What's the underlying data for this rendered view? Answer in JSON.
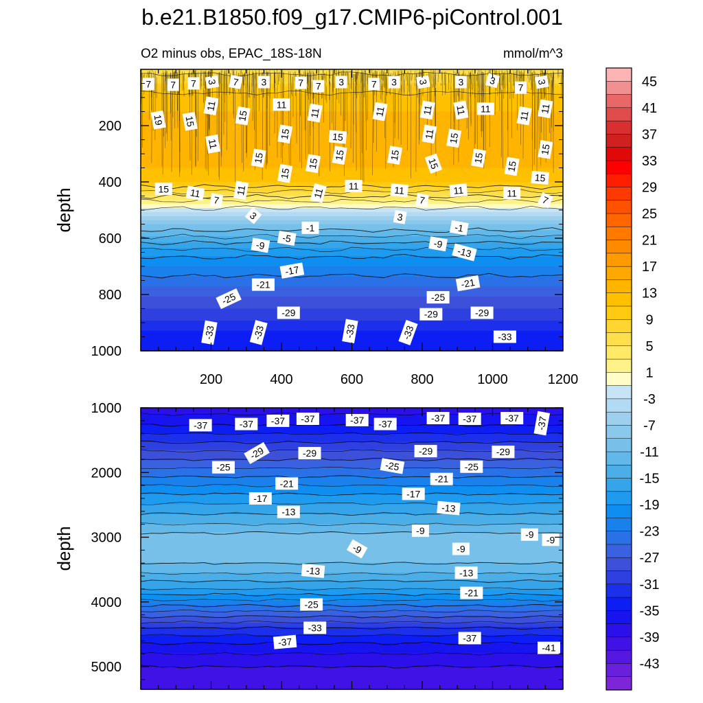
{
  "figure": {
    "title": "b.e21.B1850.f09_g17.CMIP6-piControl.001",
    "subtitle_left": "O2 minus obs, EPAC_18S-18N",
    "subtitle_right": "mmol/m^3"
  },
  "chart_data": [
    {
      "type": "heatmap",
      "panel": "upper",
      "ylabel": "depth",
      "xlim": [
        0,
        1200
      ],
      "ylim": [
        1000,
        0
      ],
      "x_ticks": [
        200,
        400,
        600,
        800,
        1000,
        1200
      ],
      "y_ticks": [
        200,
        400,
        600,
        800,
        1000
      ],
      "profile": {
        "depth": [
          0,
          100,
          200,
          300,
          400,
          460,
          500,
          560,
          650,
          750,
          850,
          950,
          1000
        ],
        "value": [
          5,
          11,
          13,
          14,
          10,
          3,
          -3,
          -11,
          -19,
          -25,
          -30,
          -35,
          -36
        ]
      },
      "contour_labels": [
        {
          "x": 22,
          "y": 52,
          "v": "7"
        },
        {
          "x": 92,
          "y": 55,
          "v": "7"
        },
        {
          "x": 150,
          "y": 50,
          "v": "7"
        },
        {
          "x": 203,
          "y": 45,
          "v": "3",
          "r": 80
        },
        {
          "x": 270,
          "y": 45,
          "v": "7",
          "r": 10
        },
        {
          "x": 350,
          "y": 45,
          "v": "3"
        },
        {
          "x": 455,
          "y": 48,
          "v": "7"
        },
        {
          "x": 505,
          "y": 60,
          "v": "7"
        },
        {
          "x": 570,
          "y": 45,
          "v": "3"
        },
        {
          "x": 663,
          "y": 52,
          "v": "7"
        },
        {
          "x": 720,
          "y": 45,
          "v": "3"
        },
        {
          "x": 803,
          "y": 45,
          "v": "3",
          "r": 80
        },
        {
          "x": 910,
          "y": 45,
          "v": "3"
        },
        {
          "x": 1000,
          "y": 40,
          "v": "3",
          "r": 15
        },
        {
          "x": 1080,
          "y": 65,
          "v": "7"
        },
        {
          "x": 1140,
          "y": 45,
          "v": "3",
          "r": 80
        },
        {
          "x": 50,
          "y": 180,
          "v": "19",
          "r": 80
        },
        {
          "x": 140,
          "y": 185,
          "v": "15",
          "r": 80
        },
        {
          "x": 200,
          "y": 130,
          "v": "11",
          "r": -80
        },
        {
          "x": 290,
          "y": 165,
          "v": "15",
          "r": -80
        },
        {
          "x": 400,
          "y": 125,
          "v": "11"
        },
        {
          "x": 495,
          "y": 155,
          "v": "11",
          "r": -80
        },
        {
          "x": 680,
          "y": 150,
          "v": "11",
          "r": -80
        },
        {
          "x": 815,
          "y": 145,
          "v": "11",
          "r": -80
        },
        {
          "x": 910,
          "y": 145,
          "v": "11",
          "r": 80
        },
        {
          "x": 980,
          "y": 140,
          "v": "11"
        },
        {
          "x": 1090,
          "y": 165,
          "v": "11",
          "r": -80
        },
        {
          "x": 1150,
          "y": 140,
          "v": "11",
          "r": -80
        },
        {
          "x": 205,
          "y": 265,
          "v": "11",
          "r": 80
        },
        {
          "x": 410,
          "y": 230,
          "v": "15",
          "r": -80
        },
        {
          "x": 560,
          "y": 240,
          "v": "15",
          "r": 5
        },
        {
          "x": 820,
          "y": 230,
          "v": "11",
          "r": -80
        },
        {
          "x": 890,
          "y": 245,
          "v": "15",
          "r": -80
        },
        {
          "x": 335,
          "y": 315,
          "v": "15",
          "r": -80
        },
        {
          "x": 410,
          "y": 370,
          "v": "15",
          "r": -80
        },
        {
          "x": 490,
          "y": 335,
          "v": "15",
          "r": -80
        },
        {
          "x": 565,
          "y": 305,
          "v": "15",
          "r": -80
        },
        {
          "x": 722,
          "y": 305,
          "v": "15",
          "r": -80
        },
        {
          "x": 832,
          "y": 335,
          "v": "15",
          "r": 70
        },
        {
          "x": 960,
          "y": 315,
          "v": "15",
          "r": -80
        },
        {
          "x": 1055,
          "y": 345,
          "v": "15",
          "r": -80
        },
        {
          "x": 1150,
          "y": 285,
          "v": "15",
          "r": -80
        },
        {
          "x": 1135,
          "y": 385,
          "v": "15",
          "r": 5
        },
        {
          "x": 65,
          "y": 425,
          "v": "15"
        },
        {
          "x": 155,
          "y": 440,
          "v": "11",
          "r": 10
        },
        {
          "x": 215,
          "y": 465,
          "v": "7",
          "r": 10
        },
        {
          "x": 285,
          "y": 430,
          "v": "11",
          "r": -80
        },
        {
          "x": 505,
          "y": 440,
          "v": "11",
          "r": -75
        },
        {
          "x": 605,
          "y": 415,
          "v": "11"
        },
        {
          "x": 735,
          "y": 430,
          "v": "11",
          "r": 5
        },
        {
          "x": 800,
          "y": 465,
          "v": "7",
          "r": 10
        },
        {
          "x": 903,
          "y": 430,
          "v": "11",
          "r": -5
        },
        {
          "x": 1055,
          "y": 440,
          "v": "11"
        },
        {
          "x": 1150,
          "y": 465,
          "v": "7",
          "r": 25
        },
        {
          "x": 320,
          "y": 520,
          "v": "3",
          "r": 40
        },
        {
          "x": 737,
          "y": 525,
          "v": "3",
          "r": 10
        },
        {
          "x": 482,
          "y": 563,
          "v": "-1"
        },
        {
          "x": 905,
          "y": 563,
          "v": "-1",
          "r": 10
        },
        {
          "x": 415,
          "y": 600,
          "v": "-5",
          "r": 10
        },
        {
          "x": 340,
          "y": 625,
          "v": "-9",
          "r": 10
        },
        {
          "x": 845,
          "y": 620,
          "v": "-9",
          "r": 10
        },
        {
          "x": 920,
          "y": 650,
          "v": "-13",
          "r": 15
        },
        {
          "x": 430,
          "y": 715,
          "v": "-17",
          "r": -10
        },
        {
          "x": 348,
          "y": 765,
          "v": "-21"
        },
        {
          "x": 930,
          "y": 760,
          "v": "-21",
          "r": -10
        },
        {
          "x": 250,
          "y": 815,
          "v": "-25",
          "r": -25
        },
        {
          "x": 845,
          "y": 810,
          "v": "-25"
        },
        {
          "x": 420,
          "y": 865,
          "v": "-29"
        },
        {
          "x": 825,
          "y": 870,
          "v": "-29"
        },
        {
          "x": 970,
          "y": 865,
          "v": "-29"
        },
        {
          "x": 195,
          "y": 935,
          "v": "-33",
          "r": -80
        },
        {
          "x": 335,
          "y": 935,
          "v": "-33",
          "r": -75
        },
        {
          "x": 595,
          "y": 930,
          "v": "-33",
          "r": -80
        },
        {
          "x": 760,
          "y": 935,
          "v": "-33",
          "r": -70
        },
        {
          "x": 1035,
          "y": 950,
          "v": "-33"
        }
      ]
    },
    {
      "type": "heatmap",
      "panel": "lower",
      "ylabel": "depth",
      "xlim": [
        0,
        1200
      ],
      "ylim": [
        5350,
        1000
      ],
      "y_ticks": [
        1000,
        2000,
        3000,
        4000,
        5000
      ],
      "profile": {
        "depth": [
          1000,
          1200,
          1600,
          2000,
          2400,
          2800,
          3000,
          3200,
          3500,
          3800,
          4100,
          4400,
          4700,
          5000,
          5350
        ],
        "value": [
          -39,
          -37,
          -31,
          -25,
          -19,
          -14,
          -11,
          -10,
          -13,
          -18,
          -25,
          -32,
          -37,
          -40,
          -42
        ]
      },
      "contour_labels": [
        {
          "x": 170,
          "y": 1270,
          "v": "-37"
        },
        {
          "x": 300,
          "y": 1250,
          "v": "-37"
        },
        {
          "x": 390,
          "y": 1200,
          "v": "-37"
        },
        {
          "x": 475,
          "y": 1170,
          "v": "-37"
        },
        {
          "x": 615,
          "y": 1190,
          "v": "-37"
        },
        {
          "x": 695,
          "y": 1250,
          "v": "-37"
        },
        {
          "x": 845,
          "y": 1160,
          "v": "-37"
        },
        {
          "x": 935,
          "y": 1170,
          "v": "-37"
        },
        {
          "x": 1055,
          "y": 1160,
          "v": "-37"
        },
        {
          "x": 1140,
          "y": 1240,
          "v": "-37",
          "r": -80
        },
        {
          "x": 330,
          "y": 1700,
          "v": "-29",
          "r": -30
        },
        {
          "x": 480,
          "y": 1700,
          "v": "-29"
        },
        {
          "x": 810,
          "y": 1670,
          "v": "-29"
        },
        {
          "x": 1030,
          "y": 1680,
          "v": "-29"
        },
        {
          "x": 235,
          "y": 1920,
          "v": "-25"
        },
        {
          "x": 715,
          "y": 1900,
          "v": "-25",
          "r": 10
        },
        {
          "x": 940,
          "y": 1910,
          "v": "-25"
        },
        {
          "x": 415,
          "y": 2170,
          "v": "-21"
        },
        {
          "x": 855,
          "y": 2100,
          "v": "-21"
        },
        {
          "x": 340,
          "y": 2400,
          "v": "-17"
        },
        {
          "x": 775,
          "y": 2330,
          "v": "-17"
        },
        {
          "x": 420,
          "y": 2610,
          "v": "-13"
        },
        {
          "x": 875,
          "y": 2550,
          "v": "-13",
          "r": 5
        },
        {
          "x": 795,
          "y": 2900,
          "v": "-9"
        },
        {
          "x": 1105,
          "y": 2960,
          "v": "-9"
        },
        {
          "x": 1165,
          "y": 3040,
          "v": "-9"
        },
        {
          "x": 615,
          "y": 3180,
          "v": "-9",
          "r": 30
        },
        {
          "x": 910,
          "y": 3180,
          "v": "-9"
        },
        {
          "x": 490,
          "y": 3520,
          "v": "-13",
          "r": 5
        },
        {
          "x": 925,
          "y": 3550,
          "v": "-13"
        },
        {
          "x": 940,
          "y": 3860,
          "v": "-21"
        },
        {
          "x": 485,
          "y": 4040,
          "v": "-25"
        },
        {
          "x": 495,
          "y": 4400,
          "v": "-33"
        },
        {
          "x": 410,
          "y": 4620,
          "v": "-37",
          "r": -5
        },
        {
          "x": 935,
          "y": 4560,
          "v": "-37"
        },
        {
          "x": 1160,
          "y": 4710,
          "v": "-41"
        }
      ]
    }
  ],
  "colorbar": {
    "labels": [
      "45",
      "41",
      "37",
      "33",
      "29",
      "25",
      "21",
      "17",
      "13",
      "9",
      "5",
      "1",
      "-3",
      "-7",
      "-11",
      "-15",
      "-19",
      "-23",
      "-27",
      "-31",
      "-35",
      "-39",
      "-43"
    ],
    "colors": [
      "#fcb4b4",
      "#f09090",
      "#e86868",
      "#e04c4c",
      "#d83030",
      "#d02020",
      "#e00808",
      "#ff0000",
      "#ff1e00",
      "#ff3a00",
      "#ff5200",
      "#ff6600",
      "#ff7800",
      "#ff8a00",
      "#ff9a00",
      "#ffa800",
      "#ffb400",
      "#ffc000",
      "#ffca10",
      "#ffd630",
      "#ffe04c",
      "#ffea68",
      "#fff288",
      "#fffcc8",
      "#c6e4f6",
      "#b2daf2",
      "#9ed0ee",
      "#8ac8ec",
      "#76c0ea",
      "#62b8e8",
      "#4caee6",
      "#36a4e8",
      "#1e9aee",
      "#0e8ef0",
      "#1a80ec",
      "#2a70e6",
      "#3a62e0",
      "#3c50da",
      "#2e40e0",
      "#1c30ec",
      "#0c1ef4",
      "#1814f0",
      "#2c10ea",
      "#4012e6",
      "#5418e0",
      "#6820dc",
      "#7c26d8"
    ]
  }
}
